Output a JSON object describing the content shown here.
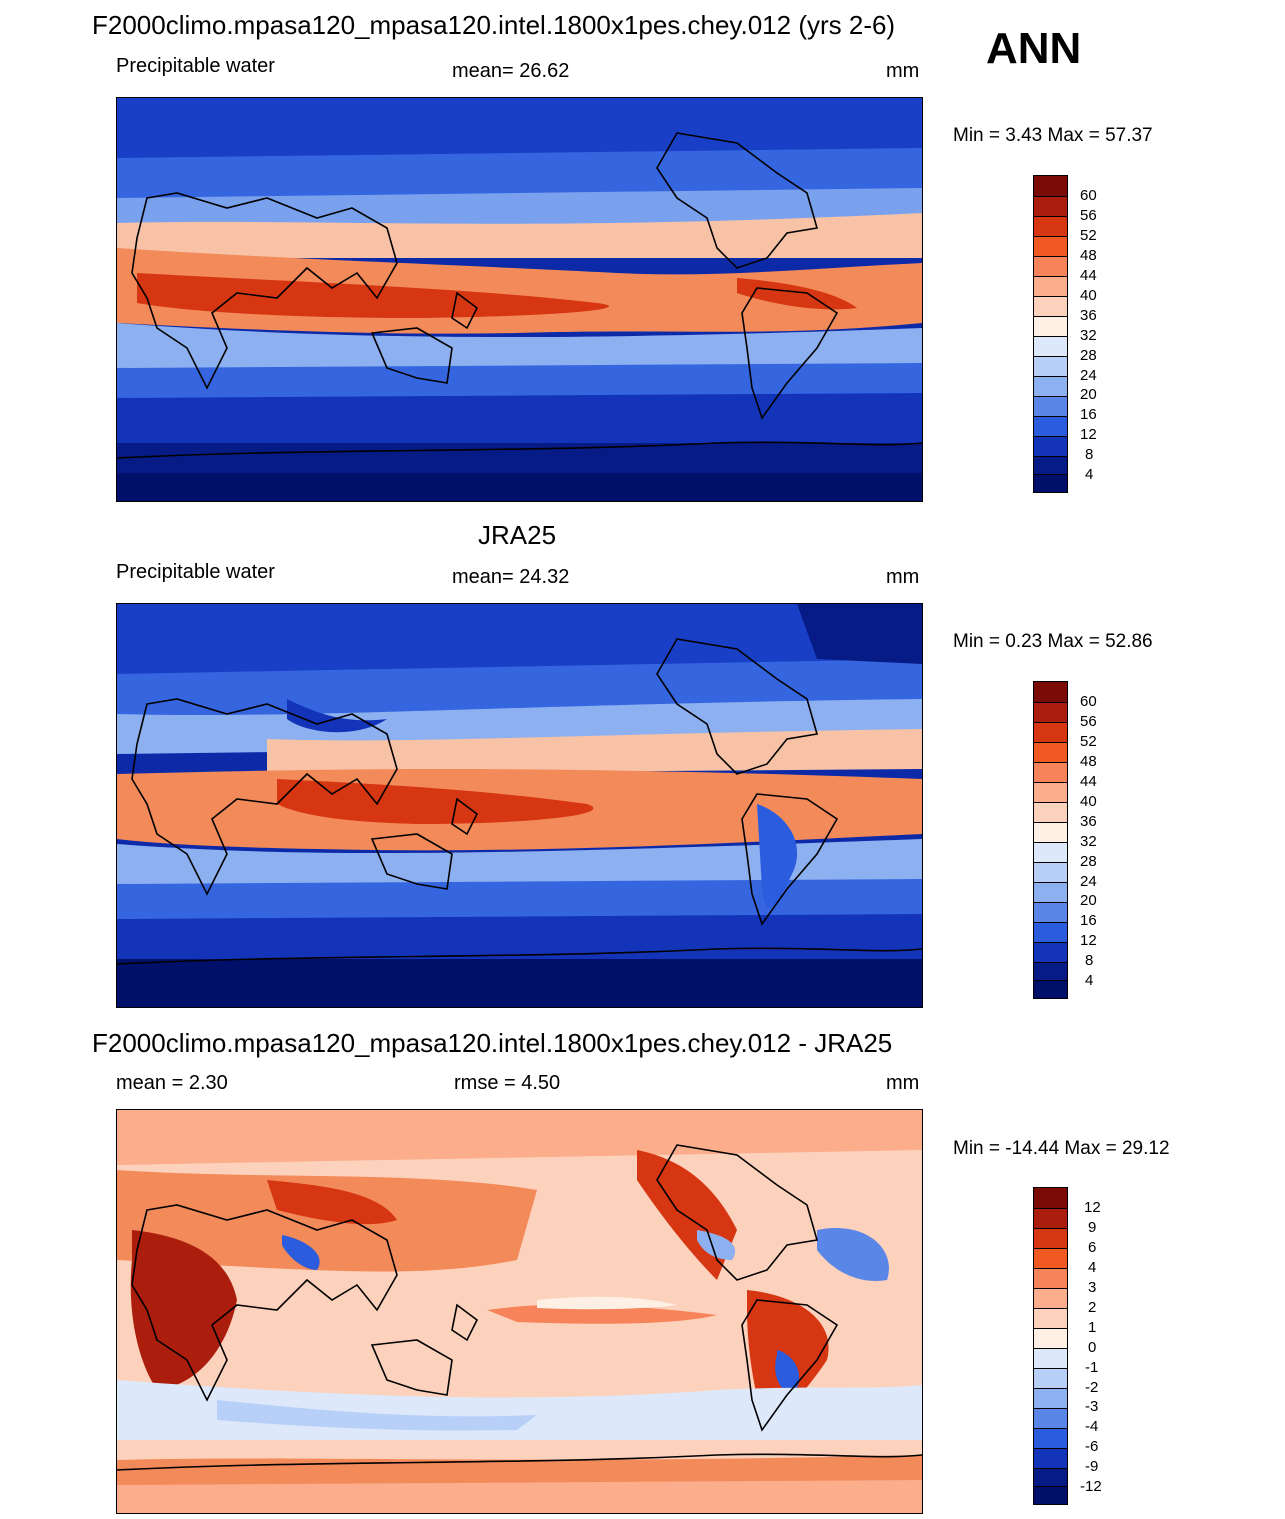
{
  "season": "ANN",
  "panels": [
    {
      "id": "model",
      "title": "F2000climo.mpasa120_mpasa120.intel.1800x1pes.chey.012 (yrs 2-6)",
      "left_label": "Precipitable water",
      "center_label": "mean=  26.62",
      "units": "mm",
      "minmax": "Min =   3.43 Max =  57.37",
      "colorbar_labels": [
        "60",
        "56",
        "52",
        "48",
        "44",
        "40",
        "36",
        "32",
        "28",
        "24",
        "20",
        "16",
        "12",
        "8",
        "4"
      ]
    },
    {
      "id": "obs",
      "title": "JRA25",
      "left_label": "Precipitable water",
      "center_label": "mean=  24.32",
      "units": "mm",
      "minmax": "Min =   0.23 Max =  52.86",
      "colorbar_labels": [
        "60",
        "56",
        "52",
        "48",
        "44",
        "40",
        "36",
        "32",
        "28",
        "24",
        "20",
        "16",
        "12",
        "8",
        "4"
      ]
    },
    {
      "id": "diff",
      "title": "F2000climo.mpasa120_mpasa120.intel.1800x1pes.chey.012 - JRA25",
      "left_label": "mean =   2.30",
      "center_label": "rmse =   4.50",
      "units": "mm",
      "minmax": "Min = -14.44 Max =  29.12",
      "colorbar_labels": [
        "12",
        "9",
        "6",
        "4",
        "3",
        "2",
        "1",
        "0",
        "-1",
        "-2",
        "-3",
        "-4",
        "-6",
        "-9",
        "-12"
      ]
    }
  ],
  "colors": {
    "abs_scale": [
      "#7a0b07",
      "#ab1d0c",
      "#d63611",
      "#f05a22",
      "#f7835a",
      "#fbad8c",
      "#fdd2bc",
      "#fff0e6",
      "#dde9fb",
      "#b8d0f7",
      "#8db0f0",
      "#5a86e8",
      "#2b5cdd",
      "#1334b8",
      "#071b86",
      "#00106a"
    ],
    "diff_scale": [
      "#7a0b07",
      "#ab1d0c",
      "#d63611",
      "#f05a22",
      "#f7835a",
      "#fbad8c",
      "#fdd2bc",
      "#fff0e6",
      "#dde9fb",
      "#b8d0f7",
      "#8db0f0",
      "#5a86e8",
      "#2b5cdd",
      "#1334b8",
      "#071b86",
      "#00106a"
    ]
  }
}
